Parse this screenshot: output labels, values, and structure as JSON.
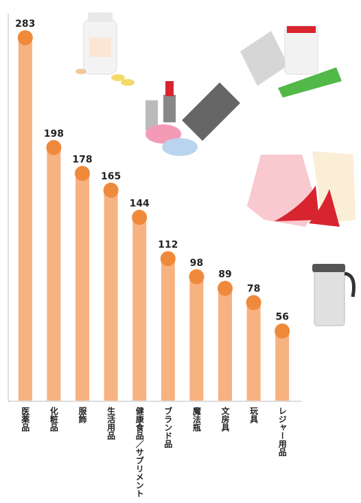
{
  "chart_data": {
    "type": "bar",
    "categories": [
      "医薬品",
      "化粧品",
      "服飾",
      "生活用品",
      "健康食品／サプリメント",
      "ブランド品",
      "魔法瓶",
      "文房具",
      "玩具",
      "レジャー用品"
    ],
    "values": [
      283,
      198,
      178,
      165,
      144,
      112,
      98,
      89,
      78,
      56
    ],
    "color": "#f7b281",
    "icon_color": "#ef8a3d",
    "ylim": [
      0,
      300
    ]
  }
}
